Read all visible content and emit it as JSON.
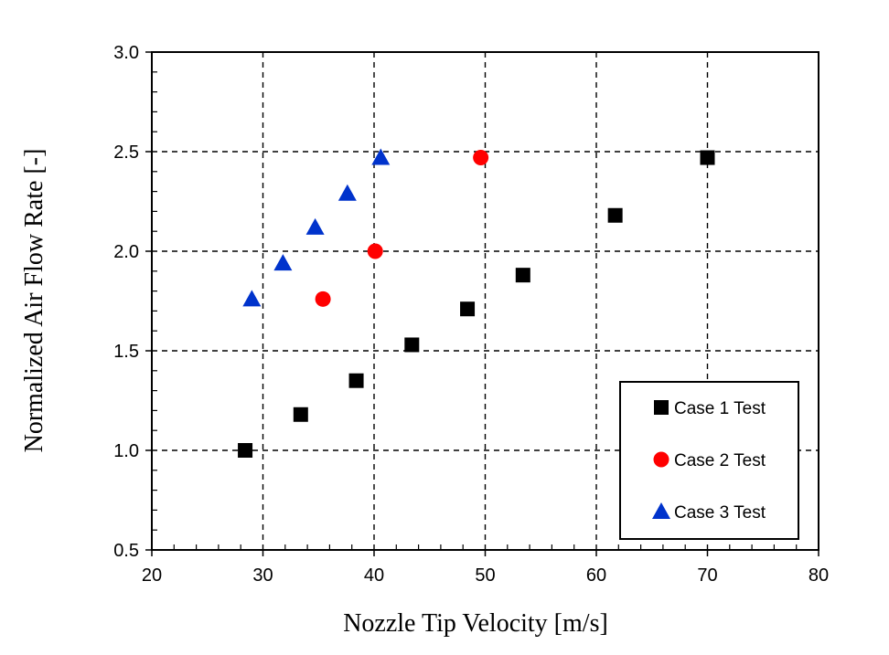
{
  "chart_data": {
    "type": "scatter",
    "title": "",
    "xlabel": "Nozzle Tip Velocity  [m/s]",
    "ylabel": "Normalized Air Flow Rate [-]",
    "xlim": [
      20,
      80
    ],
    "ylim": [
      0.5,
      3.0
    ],
    "xticks": [
      20,
      30,
      40,
      50,
      60,
      70,
      80
    ],
    "yticks": [
      0.5,
      1.0,
      1.5,
      2.0,
      2.5,
      3.0
    ],
    "xtick_labels": [
      "20",
      "30",
      "40",
      "50",
      "60",
      "70",
      "80"
    ],
    "ytick_labels": [
      "0.5",
      "1.0",
      "1.5",
      "2.0",
      "2.5",
      "3.0"
    ],
    "grid": "dashed major gridlines on both axes",
    "legend_position": "bottom-right",
    "series": [
      {
        "name": "Case 1 Test",
        "marker": "square",
        "color": "#000000",
        "points": [
          {
            "x": 28.4,
            "y": 1.0
          },
          {
            "x": 33.4,
            "y": 1.18
          },
          {
            "x": 38.4,
            "y": 1.35
          },
          {
            "x": 43.4,
            "y": 1.53
          },
          {
            "x": 48.4,
            "y": 1.71
          },
          {
            "x": 53.4,
            "y": 1.88
          },
          {
            "x": 61.7,
            "y": 2.18
          },
          {
            "x": 70.0,
            "y": 2.47
          }
        ]
      },
      {
        "name": "Case 2 Test",
        "marker": "circle",
        "color": "#ff0000",
        "points": [
          {
            "x": 35.4,
            "y": 1.76
          },
          {
            "x": 40.1,
            "y": 2.0
          },
          {
            "x": 49.6,
            "y": 2.47
          }
        ]
      },
      {
        "name": "Case 3 Test",
        "marker": "triangle",
        "color": "#0033cc",
        "points": [
          {
            "x": 29.0,
            "y": 1.76
          },
          {
            "x": 31.8,
            "y": 1.94
          },
          {
            "x": 34.7,
            "y": 2.12
          },
          {
            "x": 37.6,
            "y": 2.29
          },
          {
            "x": 40.6,
            "y": 2.47
          }
        ]
      }
    ]
  }
}
